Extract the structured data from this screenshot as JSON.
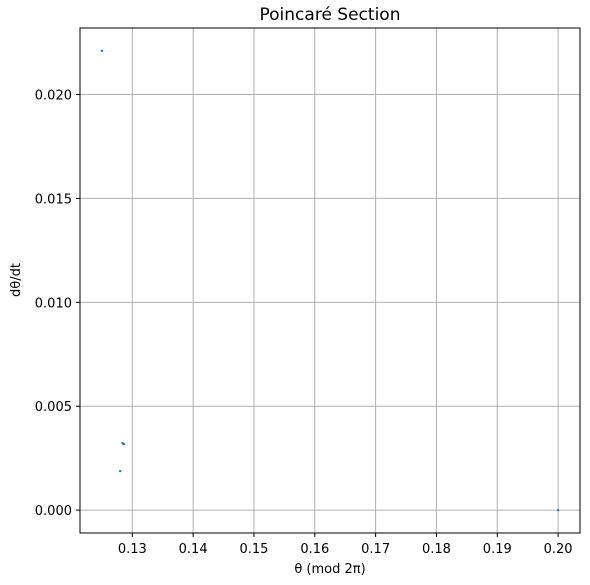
{
  "chart_data": {
    "type": "scatter",
    "title": "Poincaré Section",
    "xlabel": "θ (mod 2π)",
    "ylabel": "dθ/dt",
    "xlim": [
      0.1214,
      0.2036
    ],
    "ylim": [
      -0.0011,
      0.0232
    ],
    "xticks": [
      0.13,
      0.14,
      0.15,
      0.16,
      0.17,
      0.18,
      0.19,
      0.2
    ],
    "xtick_labels": [
      "0.13",
      "0.14",
      "0.15",
      "0.16",
      "0.17",
      "0.18",
      "0.19",
      "0.20"
    ],
    "yticks": [
      0.0,
      0.005,
      0.01,
      0.015,
      0.02
    ],
    "ytick_labels": [
      "0.000",
      "0.005",
      "0.010",
      "0.015",
      "0.020"
    ],
    "grid": true,
    "marker_color": "#1f77b4",
    "grid_color": "#b0b0b0",
    "points": [
      {
        "x": 0.125,
        "y": 0.0221
      },
      {
        "x": 0.1284,
        "y": 0.00322
      },
      {
        "x": 0.1286,
        "y": 0.00318
      },
      {
        "x": 0.1285,
        "y": 0.0032
      },
      {
        "x": 0.128,
        "y": 0.00188
      },
      {
        "x": 0.2,
        "y": 0.0
      }
    ]
  }
}
